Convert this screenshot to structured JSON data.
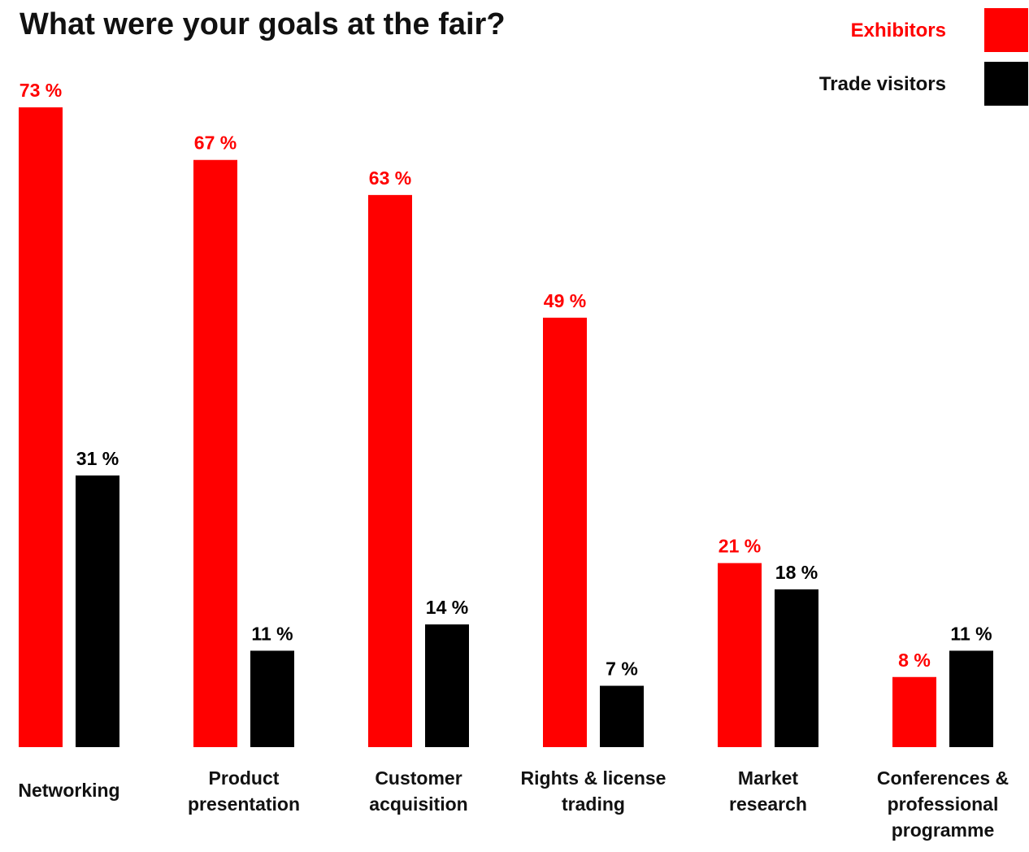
{
  "chart_data": {
    "type": "bar",
    "title": "What were your goals at the fair?",
    "categories": [
      [
        "Networking"
      ],
      [
        "Product",
        "presentation"
      ],
      [
        "Customer",
        "acquisition"
      ],
      [
        "Rights & license",
        "trading"
      ],
      [
        "Market",
        "research"
      ],
      [
        "Conferences &",
        "professional",
        "programme"
      ]
    ],
    "series": [
      {
        "name": "Exhibitors",
        "color": "#ff0000",
        "values": [
          73,
          67,
          63,
          49,
          21,
          8
        ],
        "labels": [
          "73 %",
          "67 %",
          "63 %",
          "49 %",
          "21 %",
          "8 %"
        ]
      },
      {
        "name": "Trade visitors",
        "color": "#000000",
        "values": [
          31,
          11,
          14,
          7,
          18,
          11
        ],
        "labels": [
          "31 %",
          "11 %",
          "14 %",
          "7 %",
          "18 %",
          "11 %"
        ]
      }
    ],
    "ylim": [
      0,
      73
    ],
    "grid": false,
    "legend": "top-right",
    "xlabel": "",
    "ylabel": ""
  }
}
